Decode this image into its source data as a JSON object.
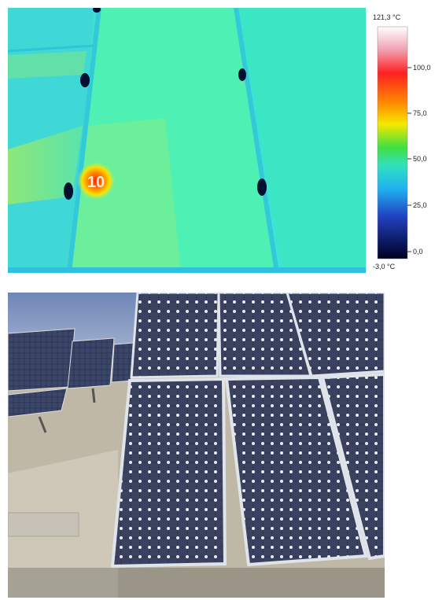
{
  "thermal": {
    "spot_marker": "10"
  },
  "scale": {
    "max_label": "121,3 °C",
    "min_label": "-3,0 °C",
    "ticks": [
      "100,0",
      "75,0",
      "50,0",
      "25,0",
      "0,0"
    ]
  }
}
